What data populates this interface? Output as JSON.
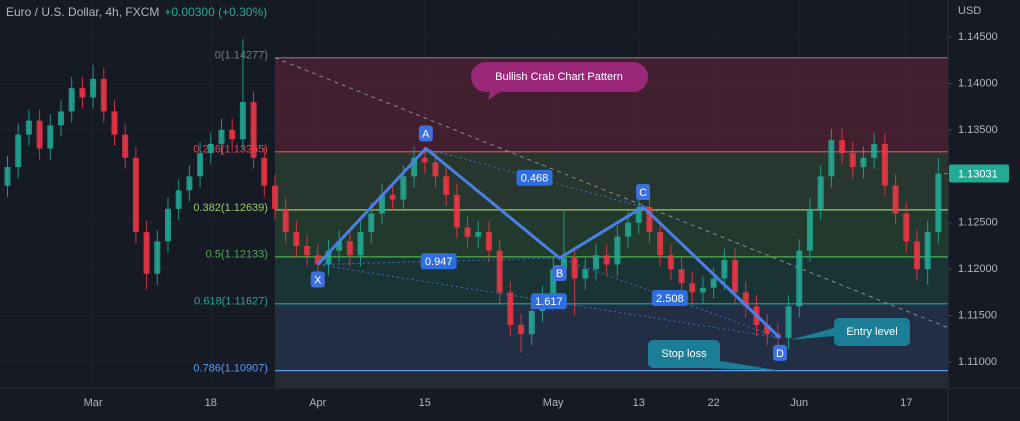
{
  "chart_data": {
    "type": "candlestick",
    "symbol": "Euro / U.S. Dollar, 4h, FXCM",
    "change": "+0.00300 (+0.30%)",
    "currency": "USD",
    "last_price": 1.13031,
    "last_price_color": "#22ab94",
    "up_color": "#22ab94",
    "down_color": "#f23645",
    "grid": true,
    "xlim": [
      -8.7,
      79.9
    ],
    "ylim": [
      1.1072,
      1.149
    ],
    "xticks": [
      {
        "value": 0,
        "label": "Mar"
      },
      {
        "value": 11,
        "label": "18"
      },
      {
        "value": 21,
        "label": "Apr"
      },
      {
        "value": 31,
        "label": "15"
      },
      {
        "value": 43,
        "label": "May"
      },
      {
        "value": 51,
        "label": "13"
      },
      {
        "value": 58,
        "label": "22"
      },
      {
        "value": 66,
        "label": "Jun"
      },
      {
        "value": 76,
        "label": "17"
      }
    ],
    "yticks": [
      {
        "value": 1.145,
        "label": "1.14500"
      },
      {
        "value": 1.14,
        "label": "1.14000"
      },
      {
        "value": 1.135,
        "label": "1.13500"
      },
      {
        "value": 1.125,
        "label": "1.12500"
      },
      {
        "value": 1.12,
        "label": "1.12000"
      },
      {
        "value": 1.115,
        "label": "1.11500"
      },
      {
        "value": 1.11,
        "label": "1.11000"
      }
    ],
    "x": [
      -8,
      -7,
      -6,
      -5,
      -4,
      -3,
      -2,
      -1,
      0,
      1,
      2,
      3,
      4,
      5,
      6,
      7,
      8,
      9,
      10,
      11,
      12,
      13,
      14,
      15,
      16,
      17,
      18,
      19,
      20,
      21,
      22,
      23,
      24,
      25,
      26,
      27,
      28,
      29,
      30,
      31,
      32,
      33,
      34,
      35,
      36,
      37,
      38,
      39,
      40,
      41,
      42,
      43,
      44,
      45,
      46,
      47,
      48,
      49,
      50,
      51,
      52,
      53,
      54,
      55,
      56,
      57,
      58,
      59,
      60,
      61,
      62,
      63,
      64,
      65,
      66,
      67,
      68,
      69,
      70,
      71,
      72,
      73,
      74,
      75,
      76,
      77,
      78,
      79
    ],
    "open": [
      1.129,
      1.131,
      1.1345,
      1.136,
      1.133,
      1.1355,
      1.137,
      1.1395,
      1.1385,
      1.1405,
      1.137,
      1.1345,
      1.132,
      1.124,
      1.1195,
      1.123,
      1.1265,
      1.1285,
      1.13,
      1.1325,
      1.1335,
      1.135,
      1.134,
      1.138,
      1.132,
      1.129,
      1.1265,
      1.124,
      1.1225,
      1.1215,
      1.1205,
      1.122,
      1.123,
      1.1215,
      1.124,
      1.126,
      1.128,
      1.1275,
      1.13,
      1.132,
      1.1315,
      1.13,
      1.128,
      1.1245,
      1.1235,
      1.124,
      1.122,
      1.1175,
      1.114,
      1.113,
      1.1155,
      1.117,
      1.12,
      1.1212,
      1.119,
      1.12,
      1.1215,
      1.1205,
      1.1235,
      1.125,
      1.1267,
      1.124,
      1.1215,
      1.12,
      1.1185,
      1.1175,
      1.118,
      1.119,
      1.121,
      1.1175,
      1.116,
      1.114,
      1.113,
      1.1126,
      1.116,
      1.122,
      1.1265,
      1.13,
      1.1339,
      1.1325,
      1.131,
      1.132,
      1.1335,
      1.129,
      1.126,
      1.123,
      1.12,
      1.124
    ],
    "high": [
      1.1322,
      1.1357,
      1.1372,
      1.1372,
      1.1367,
      1.1382,
      1.1407,
      1.1407,
      1.142,
      1.1417,
      1.1382,
      1.1357,
      1.1332,
      1.1252,
      1.1242,
      1.1277,
      1.1297,
      1.1312,
      1.1337,
      1.1347,
      1.1362,
      1.1362,
      1.1448,
      1.1392,
      1.1332,
      1.1302,
      1.1277,
      1.1252,
      1.1237,
      1.1227,
      1.1232,
      1.1242,
      1.1242,
      1.1252,
      1.1272,
      1.1292,
      1.1292,
      1.1312,
      1.1332,
      1.1332,
      1.1327,
      1.1312,
      1.1292,
      1.1257,
      1.1252,
      1.1252,
      1.1232,
      1.1187,
      1.1152,
      1.1167,
      1.1182,
      1.1212,
      1.1265,
      1.1224,
      1.1212,
      1.1227,
      1.1227,
      1.1247,
      1.1262,
      1.1279,
      1.1279,
      1.1252,
      1.1227,
      1.1212,
      1.1197,
      1.1192,
      1.1202,
      1.1222,
      1.1222,
      1.1187,
      1.1172,
      1.1152,
      1.1142,
      1.1172,
      1.1232,
      1.1277,
      1.1312,
      1.1351,
      1.1351,
      1.1337,
      1.1332,
      1.1347,
      1.1347,
      1.1302,
      1.1272,
      1.1242,
      1.1252,
      1.132
    ],
    "low": [
      1.1278,
      1.1298,
      1.1333,
      1.1318,
      1.1318,
      1.1343,
      1.1358,
      1.1373,
      1.1373,
      1.1358,
      1.1333,
      1.1308,
      1.1228,
      1.1178,
      1.1183,
      1.1218,
      1.1253,
      1.1273,
      1.1288,
      1.1313,
      1.1323,
      1.1328,
      1.1328,
      1.1308,
      1.1278,
      1.1253,
      1.1228,
      1.1213,
      1.1203,
      1.1185,
      1.1193,
      1.1208,
      1.1203,
      1.1203,
      1.1228,
      1.1248,
      1.1263,
      1.1263,
      1.1288,
      1.1303,
      1.1288,
      1.1268,
      1.1233,
      1.1223,
      1.1223,
      1.1208,
      1.1163,
      1.1128,
      1.111,
      1.1118,
      1.1143,
      1.1158,
      1.1188,
      1.115,
      1.1178,
      1.1188,
      1.1193,
      1.1193,
      1.1223,
      1.1238,
      1.1228,
      1.1203,
      1.1188,
      1.1173,
      1.1163,
      1.1163,
      1.1168,
      1.1178,
      1.1163,
      1.1148,
      1.1128,
      1.1118,
      1.1114,
      1.1114,
      1.1148,
      1.1208,
      1.1253,
      1.1288,
      1.1313,
      1.1298,
      1.1298,
      1.1308,
      1.1278,
      1.1248,
      1.1218,
      1.1188,
      1.1183,
      1.1228
    ],
    "close": [
      1.131,
      1.1345,
      1.136,
      1.133,
      1.1355,
      1.137,
      1.1395,
      1.1385,
      1.1405,
      1.137,
      1.1345,
      1.132,
      1.124,
      1.1195,
      1.123,
      1.1265,
      1.1285,
      1.13,
      1.1325,
      1.1335,
      1.135,
      1.134,
      1.138,
      1.132,
      1.129,
      1.1265,
      1.124,
      1.1225,
      1.1215,
      1.1205,
      1.122,
      1.123,
      1.1215,
      1.124,
      1.126,
      1.128,
      1.1275,
      1.13,
      1.132,
      1.1315,
      1.13,
      1.128,
      1.1245,
      1.1235,
      1.124,
      1.122,
      1.1175,
      1.114,
      1.113,
      1.1155,
      1.117,
      1.12,
      1.1212,
      1.119,
      1.12,
      1.1215,
      1.1205,
      1.1235,
      1.125,
      1.1267,
      1.124,
      1.1215,
      1.12,
      1.1185,
      1.1175,
      1.118,
      1.119,
      1.121,
      1.1175,
      1.116,
      1.114,
      1.113,
      1.1126,
      1.116,
      1.122,
      1.1265,
      1.13,
      1.1339,
      1.1325,
      1.131,
      1.132,
      1.1335,
      1.129,
      1.126,
      1.123,
      1.12,
      1.124,
      1.1303
    ],
    "fib_start": 17,
    "fib_levels": [
      {
        "value": 1.14277,
        "label": "0(1.14277)",
        "color": "#787b86"
      },
      {
        "value": 1.13265,
        "label": "0.236(1.13265)",
        "color": "#e04858"
      },
      {
        "value": 1.12639,
        "label": "0.382(1.12639)",
        "color": "#9ccc65"
      },
      {
        "value": 1.12133,
        "label": "0.5(1.12133)",
        "color": "#4caf50"
      },
      {
        "value": 1.11627,
        "label": "0.618(1.11627)",
        "color": "#26a69a"
      },
      {
        "value": 1.10907,
        "label": "0.786(1.10907)",
        "color": "#5b9cf6"
      }
    ],
    "fib_fills": [
      "#4a2130",
      "#2a3d31",
      "#24402f",
      "#1b3a39",
      "#243349"
    ],
    "trendline": {
      "x": [
        17,
        79.9
      ],
      "y": [
        1.14277,
        1.1137
      ],
      "color": "#8a8d96"
    },
    "pattern": {
      "labels": [
        "X",
        "A",
        "B",
        "C",
        "D"
      ],
      "x": [
        21,
        31.1,
        43.6,
        51.4,
        64.2
      ],
      "y": [
        1.1205,
        1.133,
        1.1212,
        1.1267,
        1.1126
      ],
      "color": "#4a7fe6"
    },
    "ratios": [
      0.947,
      0.468,
      2.508,
      1.617
    ],
    "annotations": {
      "title": "Bullish Crab Chart Pattern",
      "title_color": "#9b2779",
      "entry": "Entry level",
      "stop": "Stop loss",
      "box_color": "#1b7d96"
    }
  }
}
